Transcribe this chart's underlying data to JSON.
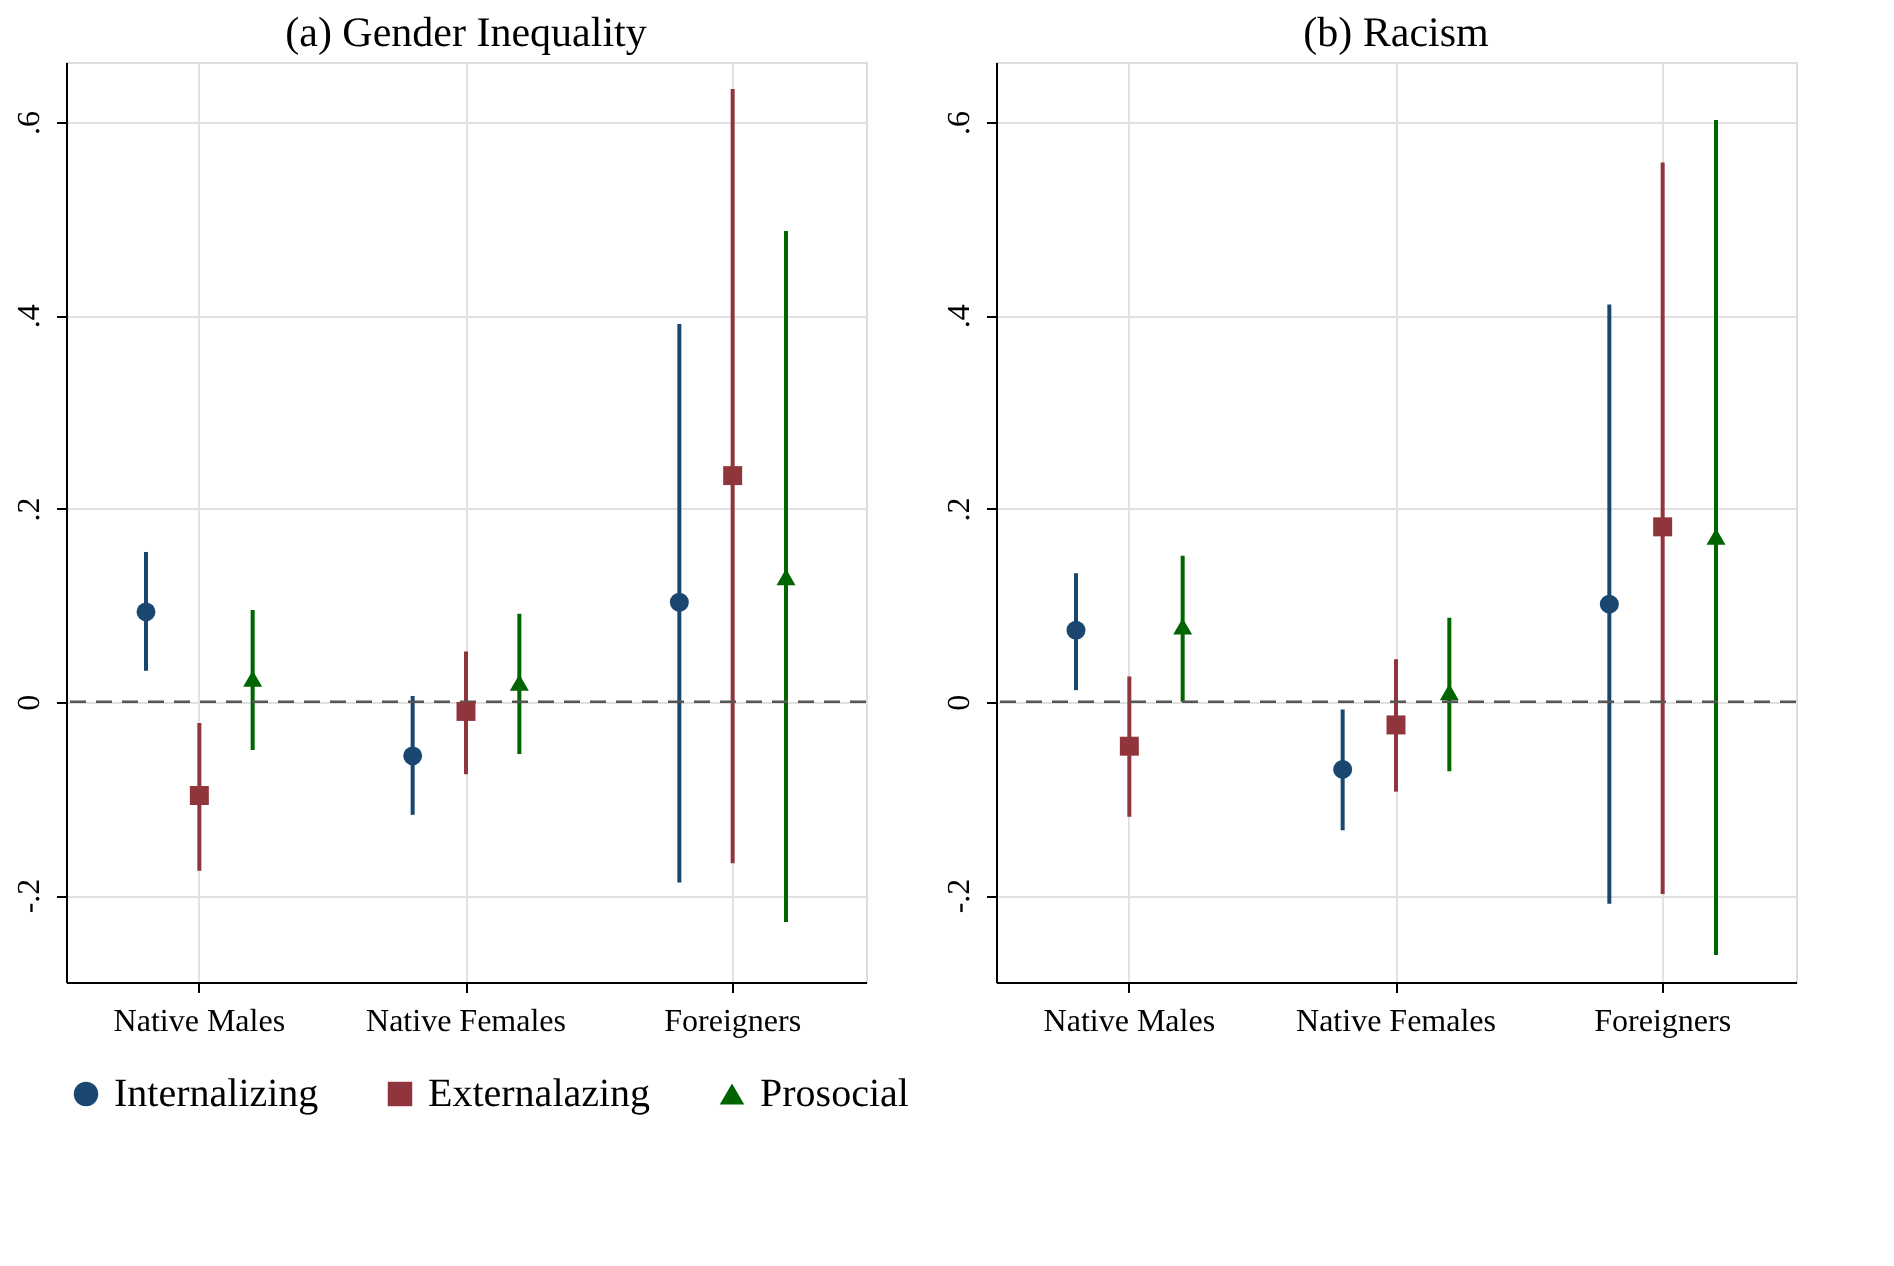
{
  "chart_data": [
    {
      "type": "scatter",
      "title": "(a) Gender Inequality",
      "categories": [
        "Native Males",
        "Native Females",
        "Foreigners"
      ],
      "series": [
        {
          "name": "Internalizing",
          "color": "#1a476f",
          "marker": "circle",
          "values": [
            0.093,
            -0.056,
            0.103
          ],
          "errors": [
            [
              0.032,
              0.155
            ],
            [
              -0.117,
              0.006
            ],
            [
              -0.187,
              0.391
            ]
          ]
        },
        {
          "name": "Externalazing",
          "color": "#90353b",
          "marker": "square",
          "values": [
            -0.097,
            -0.01,
            0.234
          ],
          "errors": [
            [
              -0.175,
              -0.022
            ],
            [
              -0.075,
              0.052
            ],
            [
              -0.167,
              0.634
            ]
          ]
        },
        {
          "name": "Prosocial",
          "color": "#006400",
          "marker": "triangle",
          "values": [
            0.024,
            0.02,
            0.129
          ],
          "errors": [
            [
              -0.05,
              0.095
            ],
            [
              -0.054,
              0.091
            ],
            [
              -0.228,
              0.487
            ]
          ]
        }
      ],
      "ylim": [
        -0.29,
        0.662
      ],
      "yticks": [
        {
          "value": -0.2,
          "label": "-.2"
        },
        0,
        {
          "value": 0.2,
          "label": ".2"
        },
        {
          "value": 0.4,
          "label": ".4"
        },
        {
          "value": 0.6,
          "label": ".6"
        }
      ],
      "grid": true,
      "legend": "bottom",
      "ref_lines": [
        {
          "axis": "y",
          "value": 0,
          "line_style": "dashed",
          "color": "#555555"
        }
      ]
    },
    {
      "type": "scatter",
      "title": "(b) Racism",
      "categories": [
        "Native Males",
        "Native Females",
        "Foreigners"
      ],
      "series": [
        {
          "name": "Internalizing",
          "color": "#1a476f",
          "marker": "circle",
          "values": [
            0.074,
            -0.07,
            0.101
          ],
          "errors": [
            [
              0.012,
              0.133
            ],
            [
              -0.133,
              -0.008
            ],
            [
              -0.209,
              0.411
            ]
          ]
        },
        {
          "name": "Externalazing",
          "color": "#90353b",
          "marker": "square",
          "values": [
            -0.046,
            -0.024,
            0.181
          ],
          "errors": [
            [
              -0.119,
              0.026
            ],
            [
              -0.093,
              0.044
            ],
            [
              -0.199,
              0.558
            ]
          ]
        },
        {
          "name": "Prosocial",
          "color": "#006400",
          "marker": "triangle",
          "values": [
            0.078,
            0.01,
            0.171
          ],
          "errors": [
            [
              0,
              0.151
            ],
            [
              -0.072,
              0.087
            ],
            [
              -0.262,
              0.602
            ]
          ]
        }
      ],
      "ylim": [
        -0.29,
        0.662
      ],
      "yticks": [
        {
          "value": -0.2,
          "label": "-.2"
        },
        0,
        {
          "value": 0.2,
          "label": ".2"
        },
        {
          "value": 0.4,
          "label": ".4"
        },
        {
          "value": 0.6,
          "label": ".6"
        }
      ],
      "grid": true,
      "legend": "bottom",
      "ref_lines": [
        {
          "axis": "y",
          "value": 0,
          "line_style": "dashed",
          "color": "#555555"
        }
      ]
    }
  ]
}
